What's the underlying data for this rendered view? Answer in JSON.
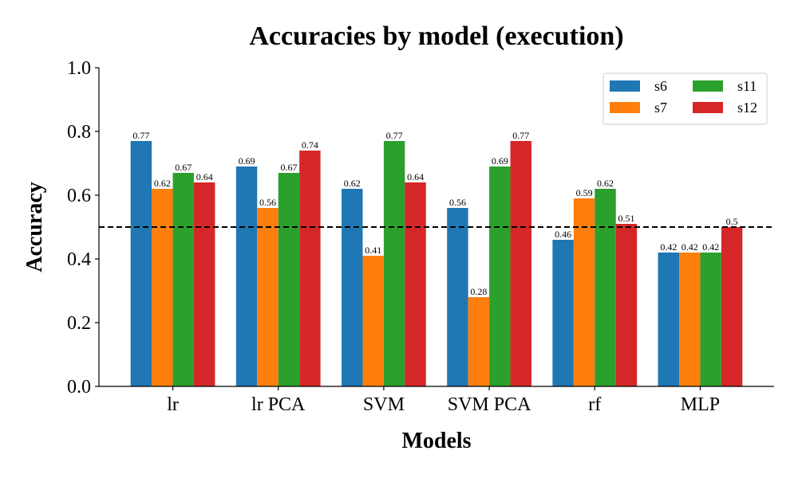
{
  "chart_data": {
    "type": "bar",
    "title": "Accuracies by model (execution)",
    "xlabel": "Models",
    "ylabel": "Accuracy",
    "ylim": [
      0,
      1.0
    ],
    "yticks": [
      "0.0",
      "0.2",
      "0.4",
      "0.6",
      "0.8",
      "1.0"
    ],
    "categories": [
      "lr",
      "lr PCA",
      "SVM",
      "SVM PCA",
      "rf",
      "MLP"
    ],
    "series": [
      {
        "name": "s6",
        "color": "#1f77b4",
        "values": [
          0.77,
          0.69,
          0.62,
          0.56,
          0.46,
          0.42
        ]
      },
      {
        "name": "s7",
        "color": "#ff7f0e",
        "values": [
          0.62,
          0.56,
          0.41,
          0.28,
          0.59,
          0.42
        ]
      },
      {
        "name": "s11",
        "color": "#2ca02c",
        "values": [
          0.67,
          0.67,
          0.77,
          0.69,
          0.62,
          0.42
        ]
      },
      {
        "name": "s12",
        "color": "#d62728",
        "values": [
          0.64,
          0.74,
          0.64,
          0.77,
          0.51,
          0.5
        ]
      }
    ],
    "reference_line": {
      "y": 0.5,
      "style": "dashed",
      "color": "#000000"
    },
    "legend_position": "top-right",
    "grid": false
  }
}
